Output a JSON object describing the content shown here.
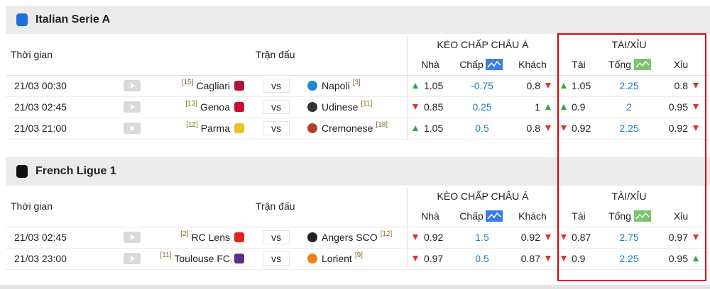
{
  "leagues": [
    {
      "name": "Italian Serie A",
      "icon_color": "#1e6fd9",
      "headers": {
        "time": "Thời gian",
        "match": "Trận đấu",
        "handicap": "KÈO CHẤP CHÂU Á",
        "over_under": "TÀI/XỈU",
        "home": "Nhà",
        "line": "Chấp",
        "away": "Khách",
        "over": "Tài",
        "total": "Tổng",
        "under": "Xỉu",
        "vs": "vs"
      },
      "matches": [
        {
          "time": "21/03 00:30",
          "home_rank": "[15]",
          "home": "Cagliari",
          "home_logo": "#b0123a",
          "away": "Napoli",
          "away_rank": "[3]",
          "away_logo": "#1a8ad4",
          "home_odds": {
            "value": 1.05,
            "dir": "up"
          },
          "line": -0.75,
          "away_odds": {
            "value": 0.8,
            "dir": "down"
          },
          "over": {
            "value": 1.05,
            "dir": "up"
          },
          "total": 2.25,
          "under": {
            "value": 0.8,
            "dir": "down"
          }
        },
        {
          "time": "21/03 02:45",
          "home_rank": "[13]",
          "home": "Genoa",
          "home_logo": "#c8102e",
          "away": "Udinese",
          "away_rank": "[11]",
          "away_logo": "#333333",
          "home_odds": {
            "value": 0.85,
            "dir": "down"
          },
          "line": 0.25,
          "away_odds": {
            "value": 1,
            "dir": "up"
          },
          "over": {
            "value": 0.9,
            "dir": "up"
          },
          "total": 2,
          "under": {
            "value": 0.95,
            "dir": "down"
          }
        },
        {
          "time": "21/03 21:00",
          "home_rank": "[12]",
          "home": "Parma",
          "home_logo": "#e8c32a",
          "away": "Cremonese",
          "away_rank": "[18]",
          "away_logo": "#b4412c",
          "home_odds": {
            "value": 1.05,
            "dir": "up"
          },
          "line": 0.5,
          "away_odds": {
            "value": 0.8,
            "dir": "down"
          },
          "over": {
            "value": 0.92,
            "dir": "down"
          },
          "total": 2.25,
          "under": {
            "value": 0.92,
            "dir": "down"
          }
        }
      ]
    },
    {
      "name": "French Ligue 1",
      "icon_color": "#111111",
      "headers": {
        "time": "Thời gian",
        "match": "Trận đấu",
        "handicap": "KÈO CHẤP CHÂU Á",
        "over_under": "TÀI/XỈU",
        "home": "Nhà",
        "line": "Chấp",
        "away": "Khách",
        "over": "Tài",
        "total": "Tổng",
        "under": "Xỉu",
        "vs": "vs"
      },
      "matches": [
        {
          "time": "21/03 02:45",
          "home_rank": "[2]",
          "home": "RC Lens",
          "home_logo": "#e2231a",
          "away": "Angers SCO",
          "away_rank": "[12]",
          "away_logo": "#222222",
          "home_odds": {
            "value": 0.92,
            "dir": "down"
          },
          "line": 1.5,
          "away_odds": {
            "value": 0.92,
            "dir": "down"
          },
          "over": {
            "value": 0.87,
            "dir": "down"
          },
          "total": 2.75,
          "under": {
            "value": 0.97,
            "dir": "down"
          }
        },
        {
          "time": "21/03 23:00",
          "home_rank": "[11]",
          "home": "Toulouse FC",
          "home_logo": "#5b2d8e",
          "away": "Lorient",
          "away_rank": "[9]",
          "away_logo": "#f07d1a",
          "home_odds": {
            "value": 0.97,
            "dir": "down"
          },
          "line": 0.5,
          "away_odds": {
            "value": 0.87,
            "dir": "down"
          },
          "over": {
            "value": 0.9,
            "dir": "down"
          },
          "total": 2.25,
          "under": {
            "value": 0.95,
            "dir": "up"
          }
        }
      ]
    }
  ]
}
